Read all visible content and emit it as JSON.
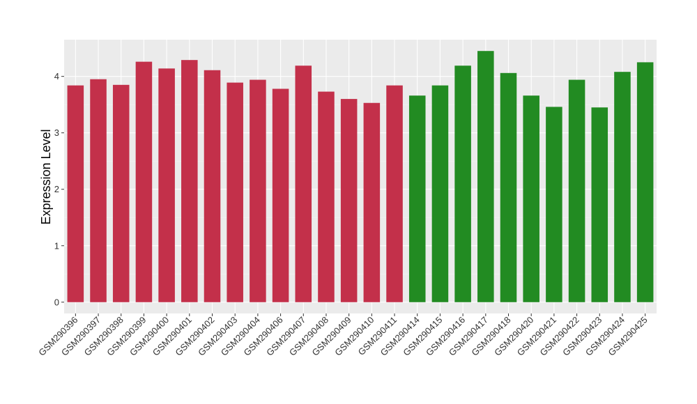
{
  "chart_data": {
    "type": "bar",
    "title": "",
    "xlabel": "",
    "ylabel": "Expression Level",
    "ylim": [
      -0.2,
      4.65
    ],
    "yticks": [
      0,
      1,
      2,
      3,
      4
    ],
    "grid": true,
    "legend": "none",
    "background": "#EBEBEB",
    "categories": [
      "GSM290396",
      "GSM290397",
      "GSM290398",
      "GSM290399",
      "GSM290400",
      "GSM290401",
      "GSM290402",
      "GSM290403",
      "GSM290404",
      "GSM290406",
      "GSM290407",
      "GSM290408",
      "GSM290409",
      "GSM290410",
      "GSM290411",
      "GSM290414",
      "GSM290415",
      "GSM290416",
      "GSM290417",
      "GSM290418",
      "GSM290420",
      "GSM290421",
      "GSM290422",
      "GSM290423",
      "GSM290424",
      "GSM290425"
    ],
    "values": [
      3.84,
      3.95,
      3.85,
      4.26,
      4.14,
      4.29,
      4.11,
      3.89,
      3.94,
      3.78,
      4.19,
      3.73,
      3.6,
      3.53,
      3.84,
      3.66,
      3.84,
      4.19,
      4.45,
      4.06,
      3.66,
      3.46,
      3.94,
      3.45,
      4.08,
      4.25
    ],
    "bar_colors": [
      "#C3304A",
      "#C3304A",
      "#C3304A",
      "#C3304A",
      "#C3304A",
      "#C3304A",
      "#C3304A",
      "#C3304A",
      "#C3304A",
      "#C3304A",
      "#C3304A",
      "#C3304A",
      "#C3304A",
      "#C3304A",
      "#C3304A",
      "#228B22",
      "#228B22",
      "#228B22",
      "#228B22",
      "#228B22",
      "#228B22",
      "#228B22",
      "#228B22",
      "#228B22",
      "#228B22",
      "#228B22"
    ]
  }
}
